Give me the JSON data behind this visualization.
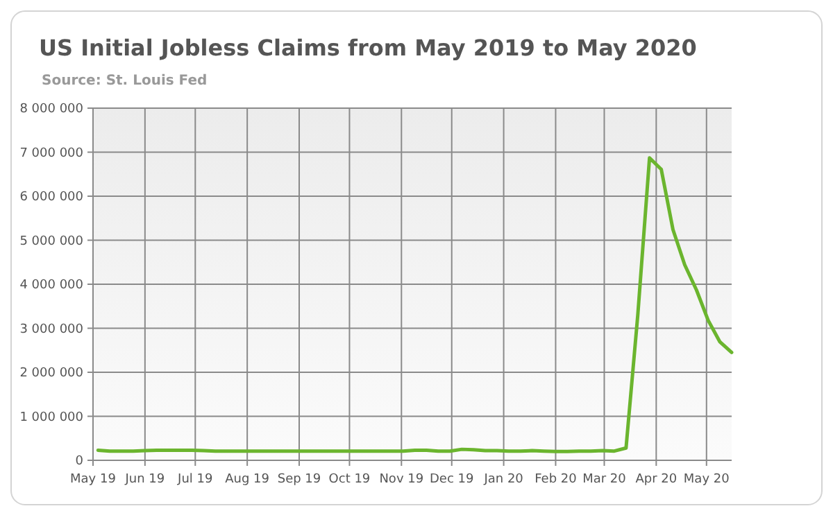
{
  "chart_data": {
    "type": "line",
    "title": "US Initial Jobless Claims from May 2019 to May 2020",
    "subtitle": "Source: St. Louis Fed",
    "x": [
      "2019-05-04",
      "2019-05-11",
      "2019-05-18",
      "2019-05-25",
      "2019-06-01",
      "2019-06-08",
      "2019-06-15",
      "2019-06-22",
      "2019-06-29",
      "2019-07-06",
      "2019-07-13",
      "2019-07-20",
      "2019-07-27",
      "2019-08-03",
      "2019-08-10",
      "2019-08-17",
      "2019-08-24",
      "2019-08-31",
      "2019-09-07",
      "2019-09-14",
      "2019-09-21",
      "2019-09-28",
      "2019-10-05",
      "2019-10-12",
      "2019-10-19",
      "2019-10-26",
      "2019-11-02",
      "2019-11-09",
      "2019-11-16",
      "2019-11-23",
      "2019-11-30",
      "2019-12-07",
      "2019-12-14",
      "2019-12-21",
      "2019-12-28",
      "2020-01-04",
      "2020-01-11",
      "2020-01-18",
      "2020-01-25",
      "2020-02-01",
      "2020-02-08",
      "2020-02-15",
      "2020-02-22",
      "2020-02-29",
      "2020-03-07",
      "2020-03-14",
      "2020-03-21",
      "2020-03-28",
      "2020-04-04",
      "2020-04-11",
      "2020-04-18",
      "2020-04-25",
      "2020-05-02",
      "2020-05-09",
      "2020-05-16"
    ],
    "series": [
      {
        "color": "#6bb52e",
        "values": [
          230000,
          210000,
          210000,
          210000,
          220000,
          230000,
          230000,
          230000,
          230000,
          220000,
          210000,
          210000,
          210000,
          210000,
          210000,
          210000,
          210000,
          210000,
          210000,
          210000,
          210000,
          210000,
          210000,
          210000,
          210000,
          210000,
          210000,
          230000,
          230000,
          210000,
          210000,
          250000,
          240000,
          220000,
          220000,
          210000,
          210000,
          220000,
          210000,
          200000,
          200000,
          210000,
          210000,
          220000,
          210000,
          280000,
          3300000,
          6870000,
          6610000,
          5240000,
          4440000,
          3870000,
          3180000,
          2690000,
          2450000
        ]
      }
    ],
    "xlim": [
      "2019-05-01",
      "2020-05-16"
    ],
    "xticks": [
      {
        "value": "2019-05-01",
        "label": "May 19"
      },
      {
        "value": "2019-06-01",
        "label": "Jun 19"
      },
      {
        "value": "2019-07-01",
        "label": "Jul 19"
      },
      {
        "value": "2019-08-01",
        "label": "Aug 19"
      },
      {
        "value": "2019-09-01",
        "label": "Sep 19"
      },
      {
        "value": "2019-10-01",
        "label": "Oct 19"
      },
      {
        "value": "2019-11-01",
        "label": "Nov 19"
      },
      {
        "value": "2019-12-01",
        "label": "Dec 19"
      },
      {
        "value": "2020-01-01",
        "label": "Jan 20"
      },
      {
        "value": "2020-02-01",
        "label": "Feb 20"
      },
      {
        "value": "2020-03-01",
        "label": "Mar 20"
      },
      {
        "value": "2020-04-01",
        "label": "Apr 20"
      },
      {
        "value": "2020-05-01",
        "label": "May 20"
      }
    ],
    "ylim": [
      0,
      8000000
    ],
    "yticks": [
      0,
      {
        "value": 1000000,
        "label": "1 000 000"
      },
      {
        "value": 2000000,
        "label": "2 000 000"
      },
      {
        "value": 3000000,
        "label": "3 000 000"
      },
      {
        "value": 4000000,
        "label": "4 000 000"
      },
      {
        "value": 5000000,
        "label": "5 000 000"
      },
      {
        "value": 6000000,
        "label": "6 000 000"
      },
      {
        "value": 7000000,
        "label": "7 000 000"
      },
      {
        "value": 8000000,
        "label": "8 000 000"
      }
    ],
    "grid": true
  }
}
